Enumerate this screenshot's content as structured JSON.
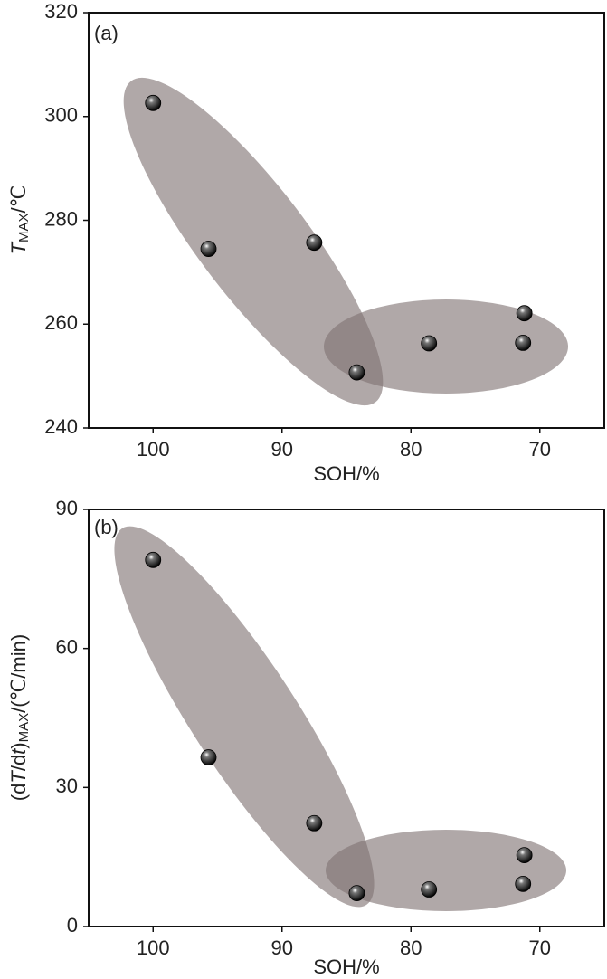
{
  "chart_data": [
    {
      "type": "scatter",
      "annotation": "(a)",
      "x_label": "SOH/%",
      "y_label": [
        "T",
        "MAX",
        "/℃"
      ],
      "xlim": [
        105,
        65
      ],
      "xticks": [
        100,
        90,
        80,
        70
      ],
      "ylim": [
        240,
        320
      ],
      "yticks": [
        240,
        260,
        280,
        300,
        320
      ],
      "color": "#000000",
      "x": [
        100,
        95.7,
        87.5,
        84.2,
        78.6,
        71.2,
        71.3
      ],
      "values": [
        302.6,
        274.5,
        275.7,
        250.7,
        256.3,
        262.1,
        256.4
      ]
    },
    {
      "type": "scatter",
      "annotation": "(b)",
      "x_label": "SOH/%",
      "y_label": [
        "(d",
        "T",
        "/d",
        "t",
        ")",
        "MAX",
        "/(℃/min)"
      ],
      "xlim": [
        105,
        65
      ],
      "xticks": [
        100,
        90,
        80,
        70
      ],
      "ylim": [
        0,
        90
      ],
      "yticks": [
        0,
        30,
        60,
        90
      ],
      "color": "#000000",
      "x": [
        100,
        95.7,
        87.5,
        84.2,
        78.6,
        71.2,
        71.3
      ],
      "values": [
        79.1,
        36.5,
        22.3,
        7.2,
        8.0,
        15.4,
        9.2
      ]
    }
  ]
}
